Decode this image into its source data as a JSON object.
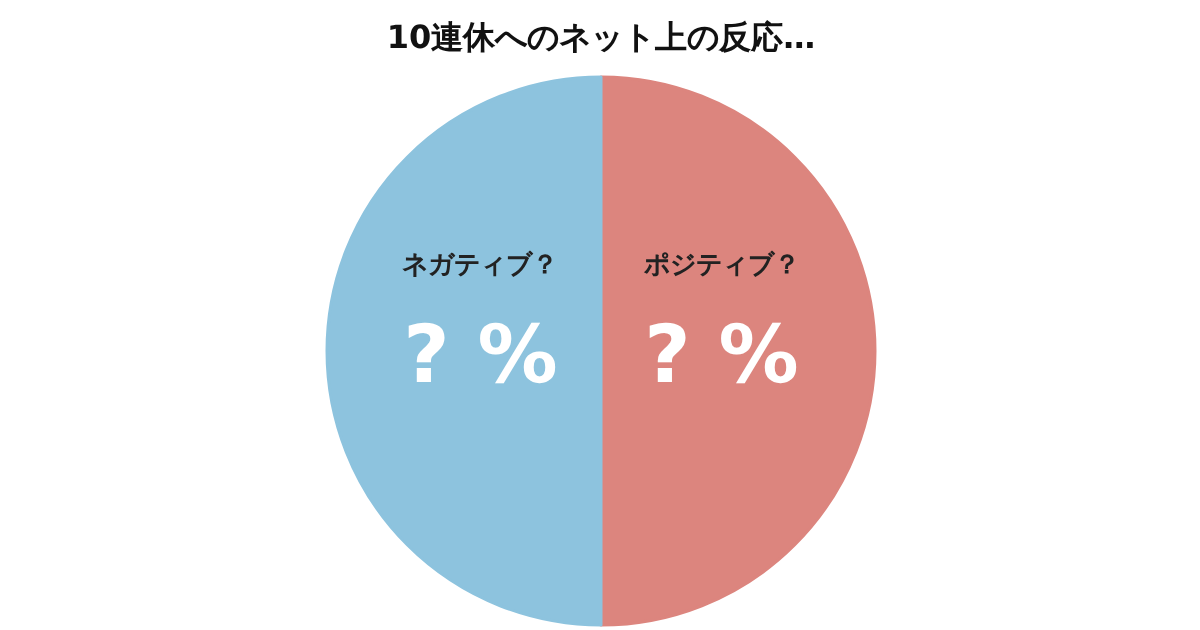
{
  "chart_data": {
    "type": "pie",
    "title": "10連休へのネット上の反応…",
    "categories": [
      "ポジティブ？",
      "ネガティブ？"
    ],
    "values": [
      50,
      50
    ],
    "colors": [
      "#dc857e",
      "#8dc3de"
    ],
    "value_labels": [
      "? %",
      "? %"
    ]
  }
}
